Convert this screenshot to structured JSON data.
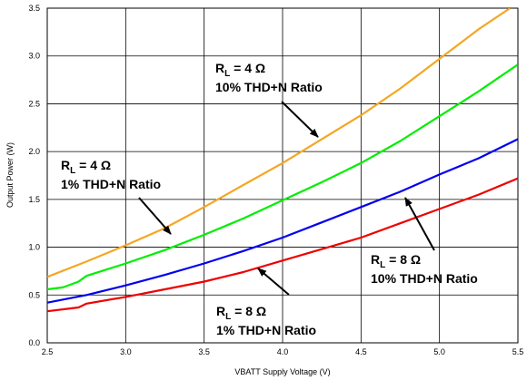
{
  "chart_data": {
    "type": "line",
    "title": "",
    "xlabel": "VBATT Supply Voltage (V)",
    "ylabel": "Output Power (W)",
    "xlim": [
      2.5,
      5.5
    ],
    "ylim": [
      0.0,
      3.5
    ],
    "x_ticks": [
      2.5,
      3.0,
      3.5,
      4.0,
      4.5,
      5.0,
      5.5
    ],
    "x_tick_labels": [
      "2.5",
      "3.0",
      "3.5",
      "4.0",
      "4.5",
      "5.0",
      "5.5"
    ],
    "y_ticks": [
      0.0,
      0.5,
      1.0,
      1.5,
      2.0,
      2.5,
      3.0,
      3.5
    ],
    "y_tick_labels": [
      "0.0",
      "0.5",
      "1.0",
      "1.5",
      "2.0",
      "2.5",
      "3.0",
      "3.5"
    ],
    "grid": "on",
    "series": [
      {
        "color": "#F5A623",
        "x": [
          2.5,
          2.75,
          3.0,
          3.25,
          3.5,
          3.75,
          4.0,
          4.25,
          4.5,
          4.75,
          5.0,
          5.25,
          5.45
        ],
        "y": [
          0.69,
          0.85,
          1.02,
          1.2,
          1.42,
          1.65,
          1.88,
          2.13,
          2.38,
          2.66,
          2.97,
          3.28,
          3.5
        ]
      },
      {
        "color": "#00EE00",
        "x": [
          2.5,
          2.6,
          2.7,
          2.75,
          3.0,
          3.25,
          3.5,
          3.75,
          4.0,
          4.25,
          4.5,
          4.75,
          5.0,
          5.25,
          5.5
        ],
        "y": [
          0.56,
          0.58,
          0.64,
          0.7,
          0.83,
          0.97,
          1.13,
          1.3,
          1.49,
          1.68,
          1.88,
          2.11,
          2.37,
          2.63,
          2.91
        ]
      },
      {
        "color": "#0000EE",
        "x": [
          2.5,
          2.75,
          3.0,
          3.25,
          3.5,
          3.75,
          4.0,
          4.25,
          4.5,
          4.75,
          5.0,
          5.25,
          5.5
        ],
        "y": [
          0.42,
          0.5,
          0.6,
          0.71,
          0.83,
          0.96,
          1.1,
          1.26,
          1.42,
          1.58,
          1.76,
          1.93,
          2.13
        ]
      },
      {
        "color": "#EE0000",
        "x": [
          2.5,
          2.7,
          2.75,
          3.0,
          3.25,
          3.5,
          3.75,
          4.0,
          4.25,
          4.5,
          4.75,
          5.0,
          5.25,
          5.5
        ],
        "y": [
          0.33,
          0.37,
          0.41,
          0.48,
          0.56,
          0.64,
          0.74,
          0.86,
          0.98,
          1.1,
          1.25,
          1.4,
          1.55,
          1.72
        ]
      }
    ],
    "annotations": [
      {
        "label_main": "R",
        "label_sub": "L",
        "label_rest": " = 4 Ω",
        "line2": "10% THD+N Ratio",
        "arrow_to": [
          4.1,
          2.12
        ]
      },
      {
        "label_main": "R",
        "label_sub": "L",
        "label_rest": " = 4 Ω",
        "line2": "1% THD+N Ratio",
        "arrow_to": [
          3.3,
          0.98
        ]
      },
      {
        "label_main": "R",
        "label_sub": "L",
        "label_rest": " = 8 Ω",
        "line2": "10% THD+N Ratio",
        "arrow_to": [
          4.75,
          1.55
        ]
      },
      {
        "label_main": "R",
        "label_sub": "L",
        "label_rest": " = 8 Ω",
        "line2": "1% THD+N Ratio",
        "arrow_to": [
          3.95,
          0.78
        ]
      }
    ]
  }
}
